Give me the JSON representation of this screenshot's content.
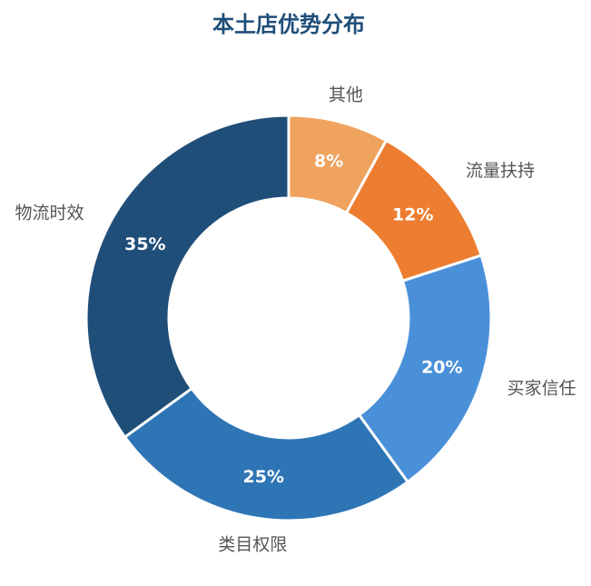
{
  "chart_data": {
    "type": "donut",
    "title": "本土店优势分布",
    "categories": [
      "其他",
      "流量扶持",
      "买家信任",
      "类目权限",
      "物流时效"
    ],
    "values": [
      8,
      12,
      20,
      25,
      35
    ],
    "value_labels": [
      "8%",
      "12%",
      "20%",
      "25%",
      "35%"
    ],
    "colors": [
      "#f0a35e",
      "#ed7d31",
      "#4a90d9",
      "#2e75b6",
      "#1f4e79"
    ]
  }
}
